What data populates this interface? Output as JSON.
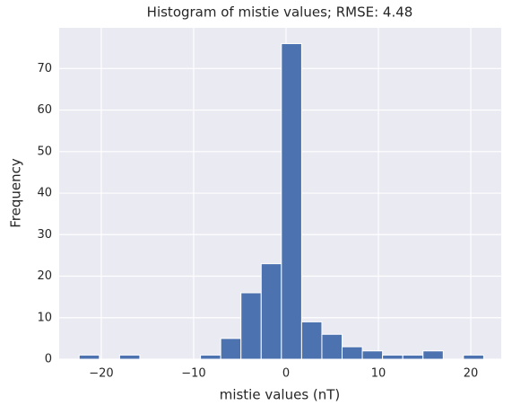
{
  "chart_data": {
    "type": "histogram",
    "title": "Histogram of mistie values; RMSE: 4.48",
    "xlabel": "mistie values (nT)",
    "ylabel": "Frequency",
    "bins": [
      -22.4,
      -20.21,
      -18.02,
      -15.83,
      -13.64,
      -11.45,
      -9.26,
      -7.07,
      -4.88,
      -2.69,
      -0.5,
      1.69,
      3.88,
      6.07,
      8.26,
      10.45,
      12.64,
      14.83,
      17.02,
      19.21,
      21.4
    ],
    "counts": [
      1,
      0,
      1,
      0,
      0,
      0,
      1,
      5,
      16,
      23,
      76,
      9,
      6,
      3,
      2,
      1,
      1,
      2,
      0,
      1
    ],
    "color": "#4c72b0",
    "xlim": [
      -24.56,
      23.3
    ],
    "ylim": [
      0,
      79.8
    ],
    "xticks": [
      {
        "value": -20,
        "label": "−20"
      },
      {
        "value": -10,
        "label": "−10"
      },
      0,
      10,
      20
    ],
    "yticks": [
      0,
      10,
      20,
      30,
      40,
      50,
      60,
      70
    ],
    "grid": true
  }
}
